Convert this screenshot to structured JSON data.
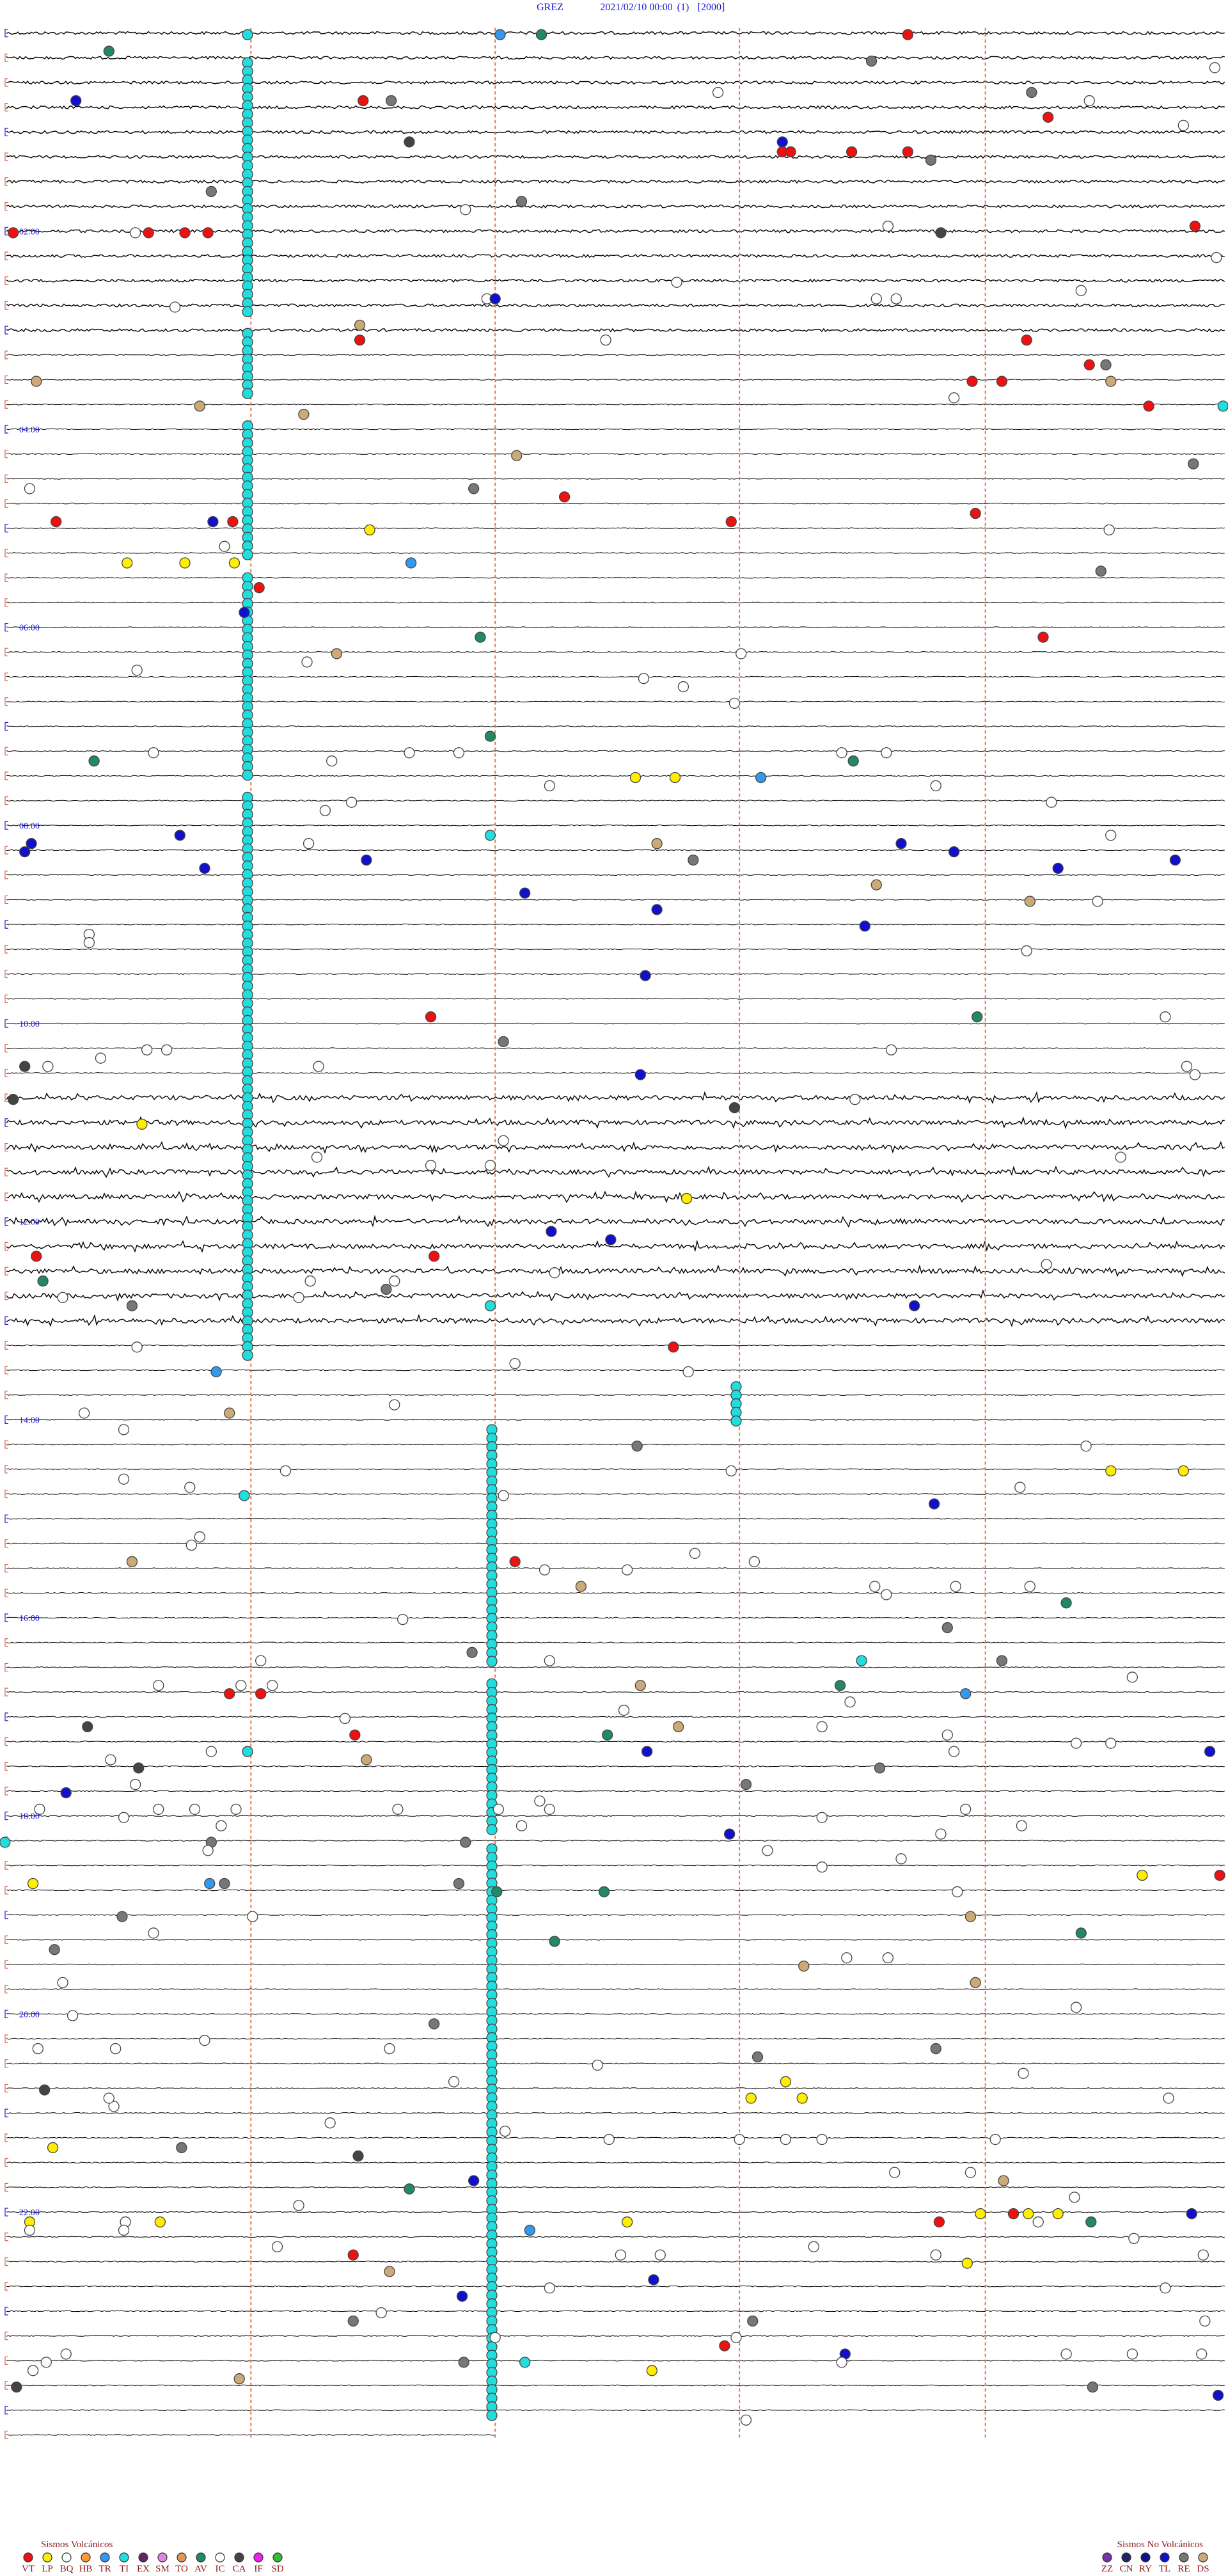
{
  "header": {
    "station": "GREZ",
    "datetime": "2021/02/10 00:00",
    "channel": "(1)",
    "scale": "[2000]"
  },
  "hour_labels": [
    "02:00",
    "04:00",
    "06:00",
    "08:00",
    "10:00",
    "12:00",
    "14:00",
    "16:00",
    "18:00",
    "20:00",
    "22:00"
  ],
  "legend": {
    "volcanic": {
      "title": "Sismos Volcánicos",
      "items": [
        {
          "code": "VT",
          "color": "#ee1111"
        },
        {
          "code": "LP",
          "color": "#ffee00"
        },
        {
          "code": "BQ",
          "color": "#ffffff"
        },
        {
          "code": "HB",
          "color": "#ff9933"
        },
        {
          "code": "TR",
          "color": "#3399ee"
        },
        {
          "code": "TI",
          "color": "#22dddd"
        },
        {
          "code": "EX",
          "color": "#662266"
        },
        {
          "code": "SM",
          "color": "#dd88dd"
        },
        {
          "code": "TO",
          "color": "#dd9955"
        },
        {
          "code": "AV",
          "color": "#228866"
        },
        {
          "code": "IC",
          "color": "#ffffff"
        },
        {
          "code": "CA",
          "color": "#444444"
        },
        {
          "code": "IF",
          "color": "#ee22ee"
        },
        {
          "code": "SD",
          "color": "#33bb33"
        }
      ]
    },
    "non_volcanic": {
      "title": "Sismos No Volcánicos",
      "items": [
        {
          "code": "ZZ",
          "color": "#7733aa"
        },
        {
          "code": "CN",
          "color": "#222266"
        },
        {
          "code": "RY",
          "color": "#111188"
        },
        {
          "code": "TL",
          "color": "#1111cc"
        },
        {
          "code": "RE",
          "color": "#777777"
        },
        {
          "code": "DS",
          "color": "#ccaa77"
        }
      ]
    }
  }
}
